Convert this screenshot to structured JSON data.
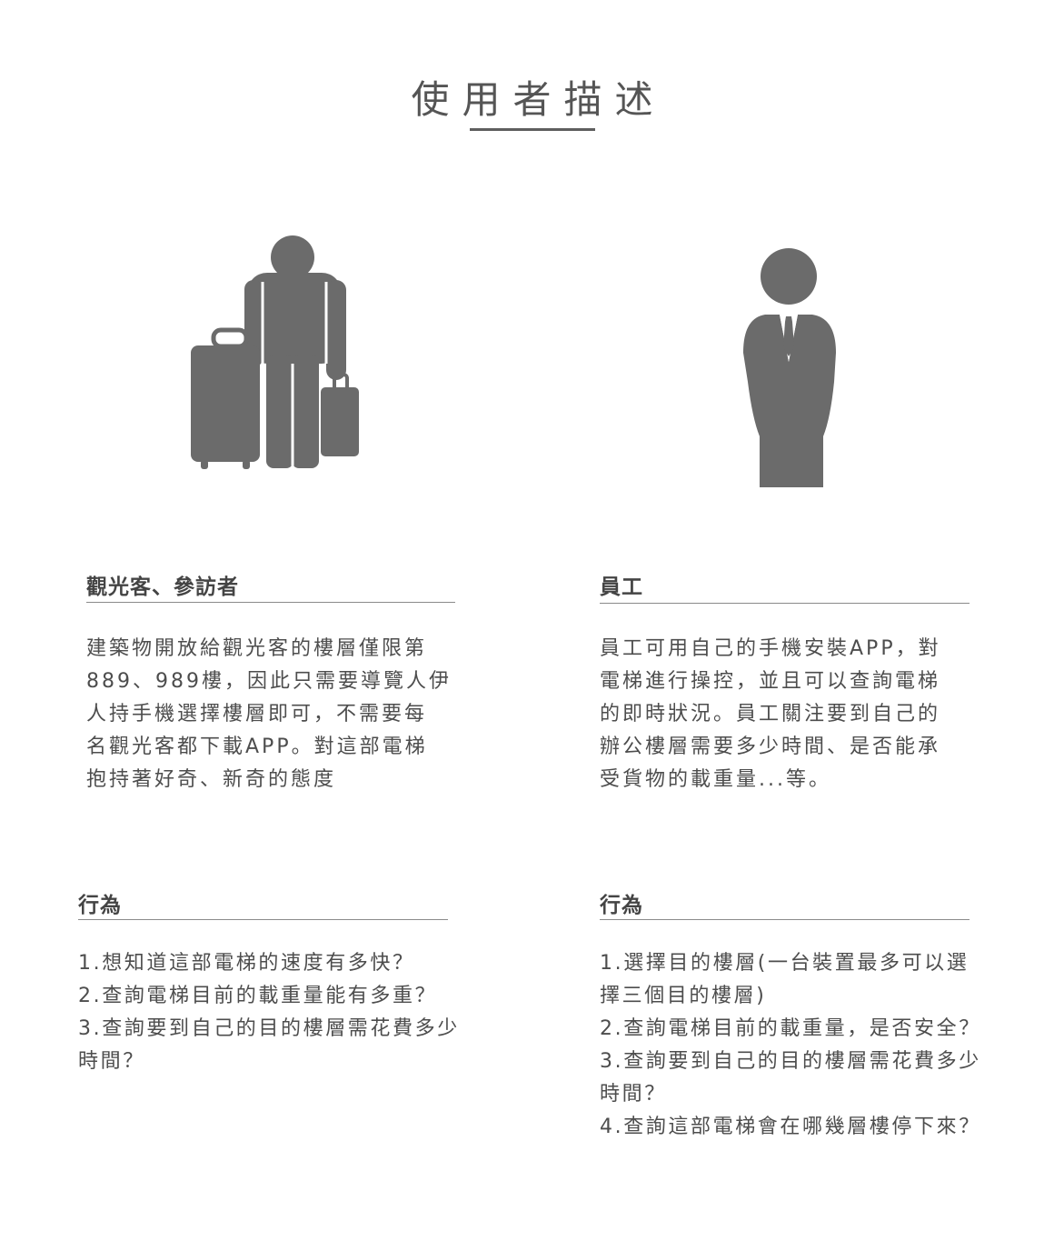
{
  "title": "使用者描述",
  "icons": {
    "left": "traveler-with-luggage-icon",
    "right": "businessman-with-tie-icon",
    "color": "#6b6b6b"
  },
  "tourist": {
    "heading": "觀光客、參訪者",
    "description": [
      "建築物開放給觀光客的樓層僅限第",
      "889、989樓，因此只需要導覽人伊",
      "人持手機選擇樓層即可，不需要每",
      "名觀光客都下載APP。對這部電梯",
      "抱持著好奇、新奇的態度"
    ],
    "behavior_heading": "行為",
    "behaviors": [
      "1.想知道這部電梯的速度有多快？",
      "2.查詢電梯目前的載重量能有多重？",
      "3.查詢要到自己的目的樓層需花費多少",
      "時間？"
    ]
  },
  "employee": {
    "heading": "員工",
    "description": [
      "員工可用自己的手機安裝APP，對",
      "電梯進行操控，並且可以查詢電梯",
      "的即時狀況。員工關注要到自己的",
      "辦公樓層需要多少時間、是否能承",
      "受貨物的載重量...等。"
    ],
    "behavior_heading": "行為",
    "behaviors": [
      "1.選擇目的樓層(一台裝置最多可以選",
      "擇三個目的樓層)",
      "2.查詢電梯目前的載重量，是否安全？",
      "3.查詢要到自己的目的樓層需花費多少",
      "時間？",
      "4.查詢這部電梯會在哪幾層樓停下來？"
    ]
  }
}
